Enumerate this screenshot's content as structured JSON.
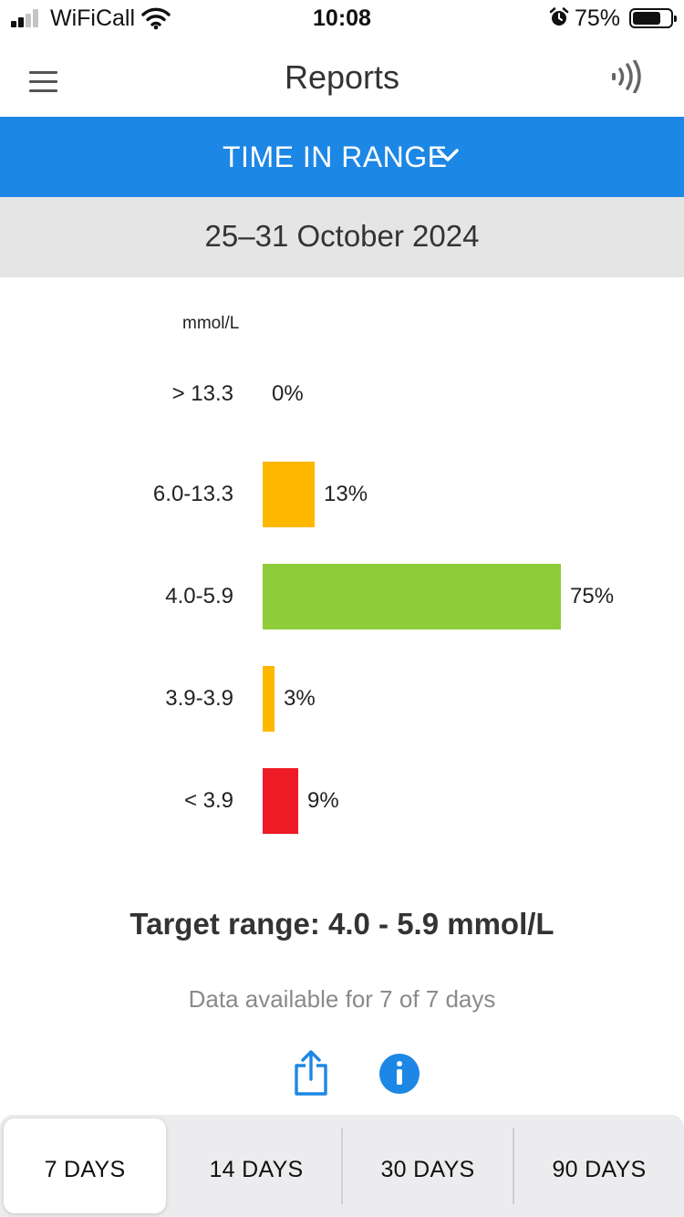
{
  "status_bar": {
    "carrier": "WiFiCall",
    "time": "10:08",
    "battery": "75%",
    "icons": [
      "signal-icon",
      "wifi-icon",
      "alarm-icon",
      "battery-icon"
    ]
  },
  "nav": {
    "title": "Reports",
    "menu_icon": "hamburger-menu-icon",
    "right_icon": "nfc-scan-icon"
  },
  "report_selector": {
    "label": "TIME IN RANGE",
    "icon": "chevron-down-icon",
    "background": "#1c87e5"
  },
  "date_range": "25–31 October 2024",
  "chart_data": {
    "type": "bar",
    "orientation": "horizontal",
    "unit_label": "mmol/L",
    "categories": [
      "> 13.3",
      "6.0-13.3",
      "4.0-5.9",
      "3.9-3.9",
      "< 3.9"
    ],
    "values": [
      0,
      13,
      75,
      3,
      9
    ],
    "value_labels": [
      "0%",
      "13%",
      "75%",
      "3%",
      "9%"
    ],
    "colors": [
      "#ffb800",
      "#ffb800",
      "#8fcc3a",
      "#ffb800",
      "#ee1c25"
    ],
    "xlim": [
      0,
      100
    ]
  },
  "target_range": "Target range: 4.0 - 5.9 mmol/L",
  "availability": "Data available for 7 of 7 days",
  "actions": {
    "share_icon": "share-icon",
    "info_icon": "info-icon",
    "accent": "#1c87e5"
  },
  "period_tabs": {
    "items": [
      "7 DAYS",
      "14 DAYS",
      "30 DAYS",
      "90 DAYS"
    ],
    "selected": "7 DAYS"
  }
}
